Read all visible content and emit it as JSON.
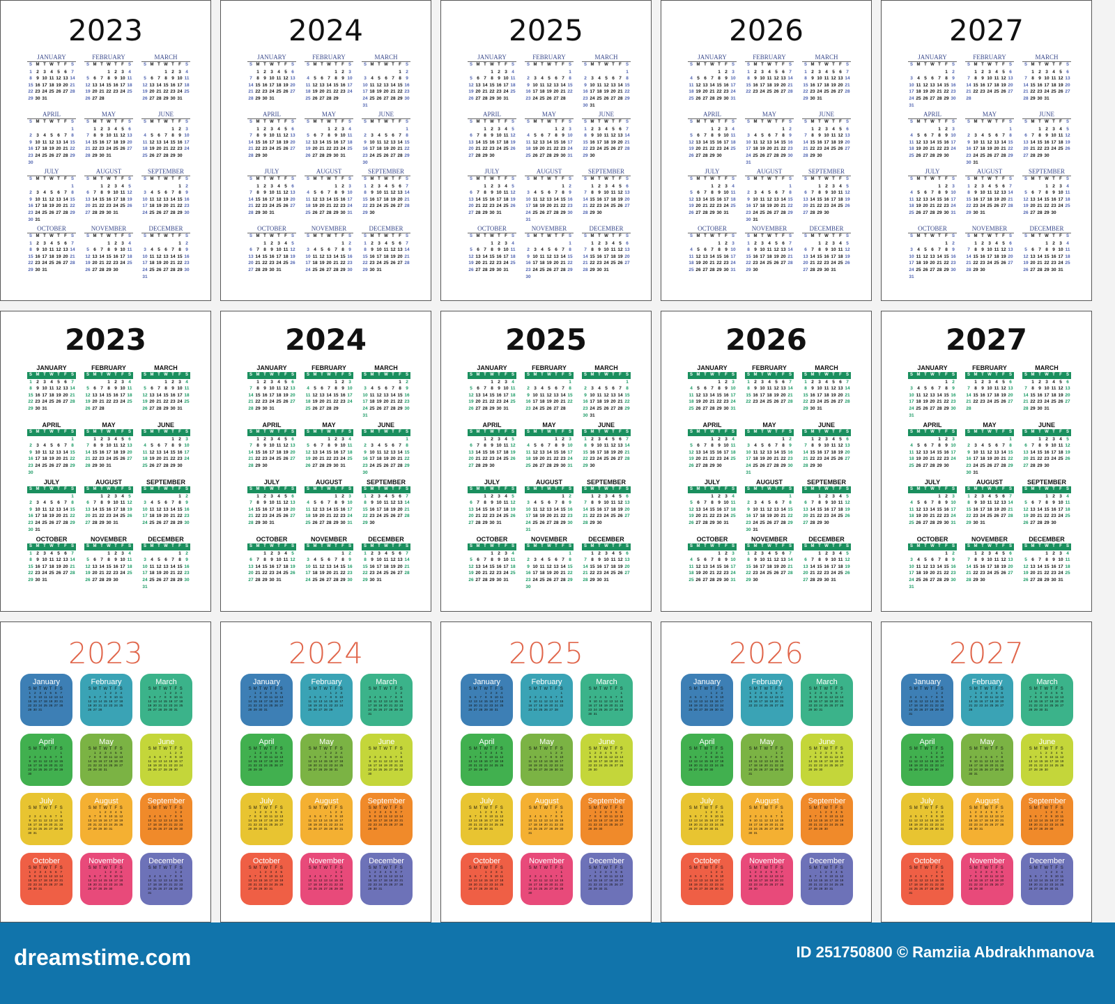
{
  "years": [
    {
      "year": "2023",
      "first_weekdays": [
        0,
        3,
        3,
        6,
        1,
        4,
        6,
        2,
        5,
        0,
        3,
        5
      ],
      "month_lengths": [
        31,
        28,
        31,
        30,
        31,
        30,
        31,
        31,
        30,
        31,
        30,
        31
      ]
    },
    {
      "year": "2024",
      "first_weekdays": [
        1,
        4,
        5,
        1,
        3,
        6,
        1,
        4,
        0,
        2,
        5,
        0
      ],
      "month_lengths": [
        31,
        29,
        31,
        30,
        31,
        30,
        31,
        31,
        30,
        31,
        30,
        31
      ]
    },
    {
      "year": "2025",
      "first_weekdays": [
        3,
        6,
        6,
        2,
        4,
        0,
        2,
        5,
        1,
        3,
        6,
        1
      ],
      "month_lengths": [
        31,
        28,
        31,
        30,
        31,
        30,
        31,
        31,
        30,
        31,
        30,
        31
      ]
    },
    {
      "year": "2026",
      "first_weekdays": [
        4,
        0,
        0,
        3,
        5,
        1,
        3,
        6,
        2,
        4,
        0,
        2
      ],
      "month_lengths": [
        31,
        28,
        31,
        30,
        31,
        30,
        31,
        31,
        30,
        31,
        30,
        31
      ]
    },
    {
      "year": "2027",
      "first_weekdays": [
        5,
        1,
        1,
        4,
        6,
        2,
        4,
        0,
        3,
        5,
        1,
        3
      ],
      "month_lengths": [
        31,
        28,
        31,
        30,
        31,
        30,
        31,
        31,
        30,
        31,
        30,
        31
      ]
    }
  ],
  "months_upper": [
    "JANUARY",
    "FEBRUARY",
    "MARCH",
    "APRIL",
    "MAY",
    "JUNE",
    "JULY",
    "AUGUST",
    "SEPTEMBER",
    "OCTOBER",
    "NOVEMBER",
    "DECEMBER"
  ],
  "months_title": [
    "January",
    "February",
    "March",
    "April",
    "May",
    "June",
    "July",
    "August",
    "September",
    "October",
    "November",
    "December"
  ],
  "weekdays": [
    "S",
    "M",
    "T",
    "W",
    "T",
    "F",
    "S"
  ],
  "colors": {
    "row1_accent": "#3a4a8c",
    "row2_accent": "#1a8f5e",
    "row3_year": "#e0654a",
    "row3_months": [
      "#3d7fb5",
      "#3aa3b5",
      "#3bb38a",
      "#41b04f",
      "#7bb344",
      "#c4d63a",
      "#e8c431",
      "#f4b032",
      "#f08a2a",
      "#ef5f45",
      "#e84a7a",
      "#6d72b8"
    ],
    "footer": "#1174ab"
  },
  "footer": {
    "logo": "dreamstime.com",
    "credit": "ID 251750800 © Ramziia Abdrakhmanova"
  }
}
